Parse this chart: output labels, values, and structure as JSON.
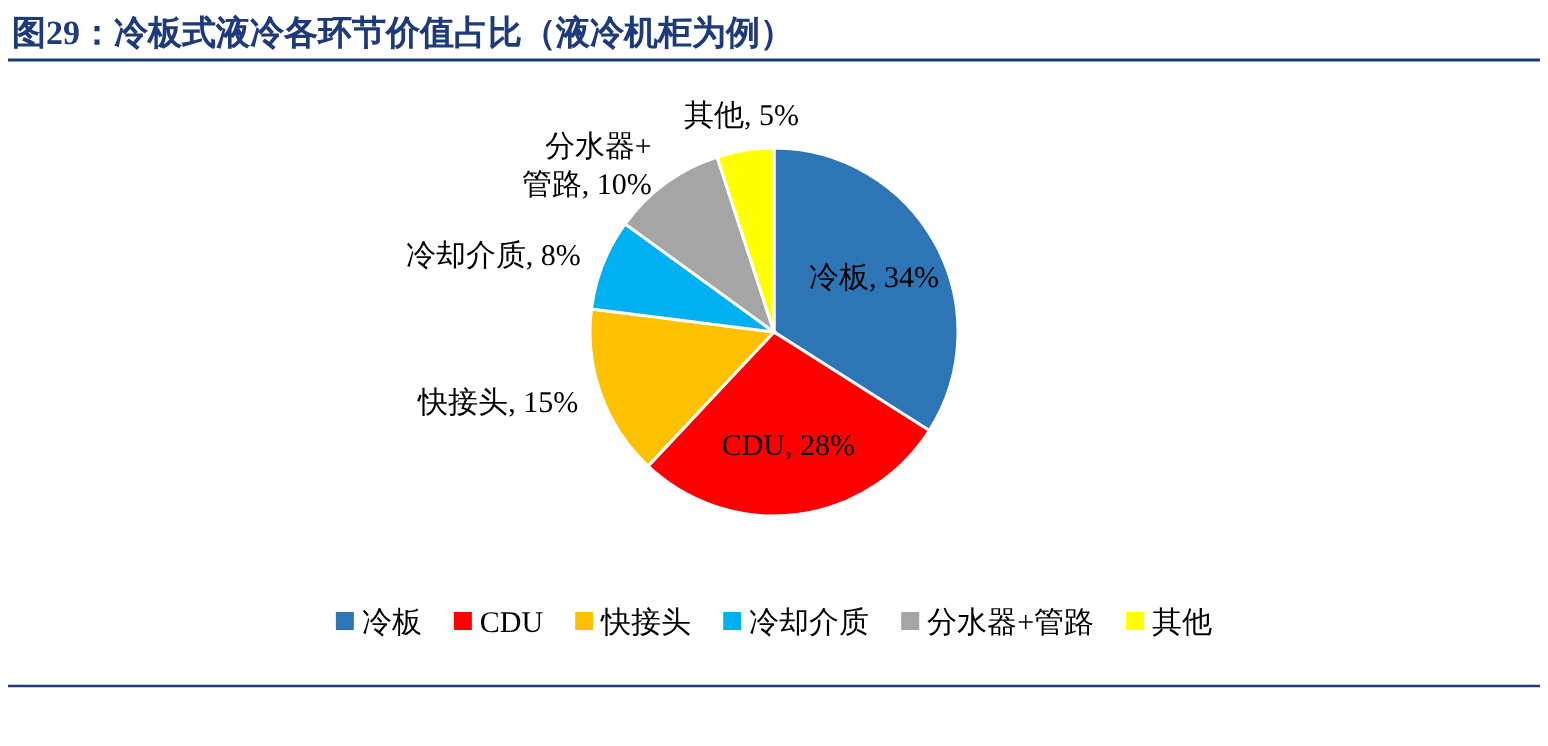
{
  "chart_data": {
    "type": "pie",
    "title": "图29：冷板式液冷各环节价值占比（液冷机柜为例）",
    "categories": [
      "冷板",
      "CDU",
      "快接头",
      "冷却介质",
      "分水器+管路",
      "其他"
    ],
    "values": [
      34,
      28,
      15,
      8,
      10,
      5
    ],
    "colors": [
      "#2e75b6",
      "#ff0000",
      "#ffc000",
      "#00b0f0",
      "#a5a5a5",
      "#ffff00"
    ],
    "value_labels": [
      "冷板, 34%",
      "CDU, 28%",
      "快接头, 15%",
      "冷却介质, 8%",
      "分水器+管路, 10%",
      "其他, 5%"
    ],
    "legend": "bottom"
  }
}
